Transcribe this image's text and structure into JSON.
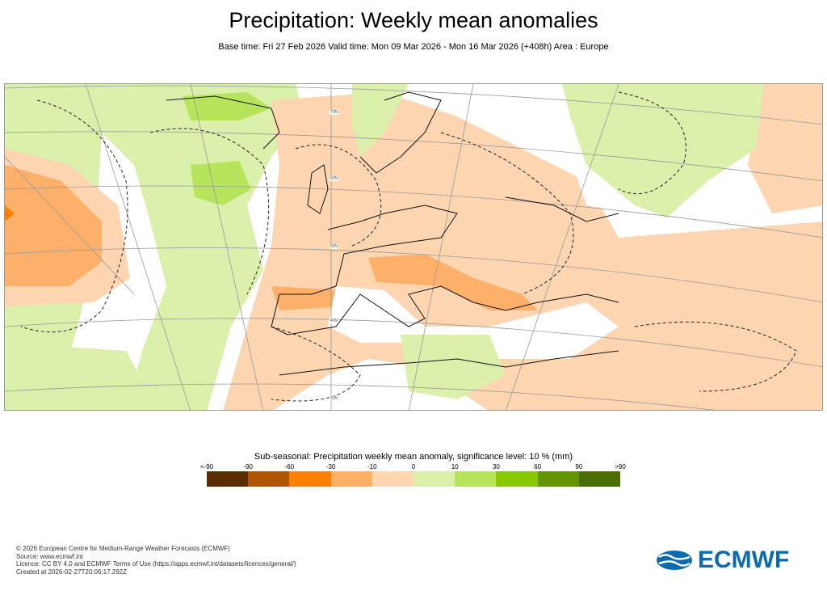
{
  "title": "Precipitation: Weekly mean anomalies",
  "subtitle": "Base time: Fri 27 Feb 2026 Valid time: Mon 09 Mar 2026 - Mon 16 Mar 2026 (+408h) Area : Europe",
  "map": {
    "latitude_labels": [
      "70N",
      "60N",
      "50N",
      "40N",
      "30N"
    ],
    "colors": {
      "light_orange": "#fdd5b0",
      "orange": "#fdb06a",
      "dark_orange": "#ff8000",
      "light_green": "#d9f0a8",
      "green": "#b5e35a",
      "mid_green": "#8bc800"
    }
  },
  "legend": {
    "title": "Sub-seasonal: Precipitation weekly mean anomaly, significance level: 10 % (mm)",
    "ticks": [
      "<-90",
      "-90",
      "-60",
      "-30",
      "-10",
      "0",
      "10",
      "30",
      "60",
      "90",
      ">90"
    ],
    "colors": [
      "#5a2d00",
      "#b05400",
      "#ff8000",
      "#ffb062",
      "#ffd6b0",
      "#dbf0aa",
      "#b6e45a",
      "#88c800",
      "#649400",
      "#4c6e00"
    ]
  },
  "footer": {
    "lines": [
      "© 2026 European Centre for Medium-Range Weather Forecasts (ECMWF)",
      "Source: www.ecmwf.int",
      "Licence: CC BY 4.0 and ECMWF Terms of Use (https://apps.ecmwf.int/datasets/licences/general/)",
      "Created at 2026-02-27T20:06:17.292Z"
    ]
  },
  "logo": {
    "text": "ECMWF",
    "color": "#0e6bab"
  }
}
